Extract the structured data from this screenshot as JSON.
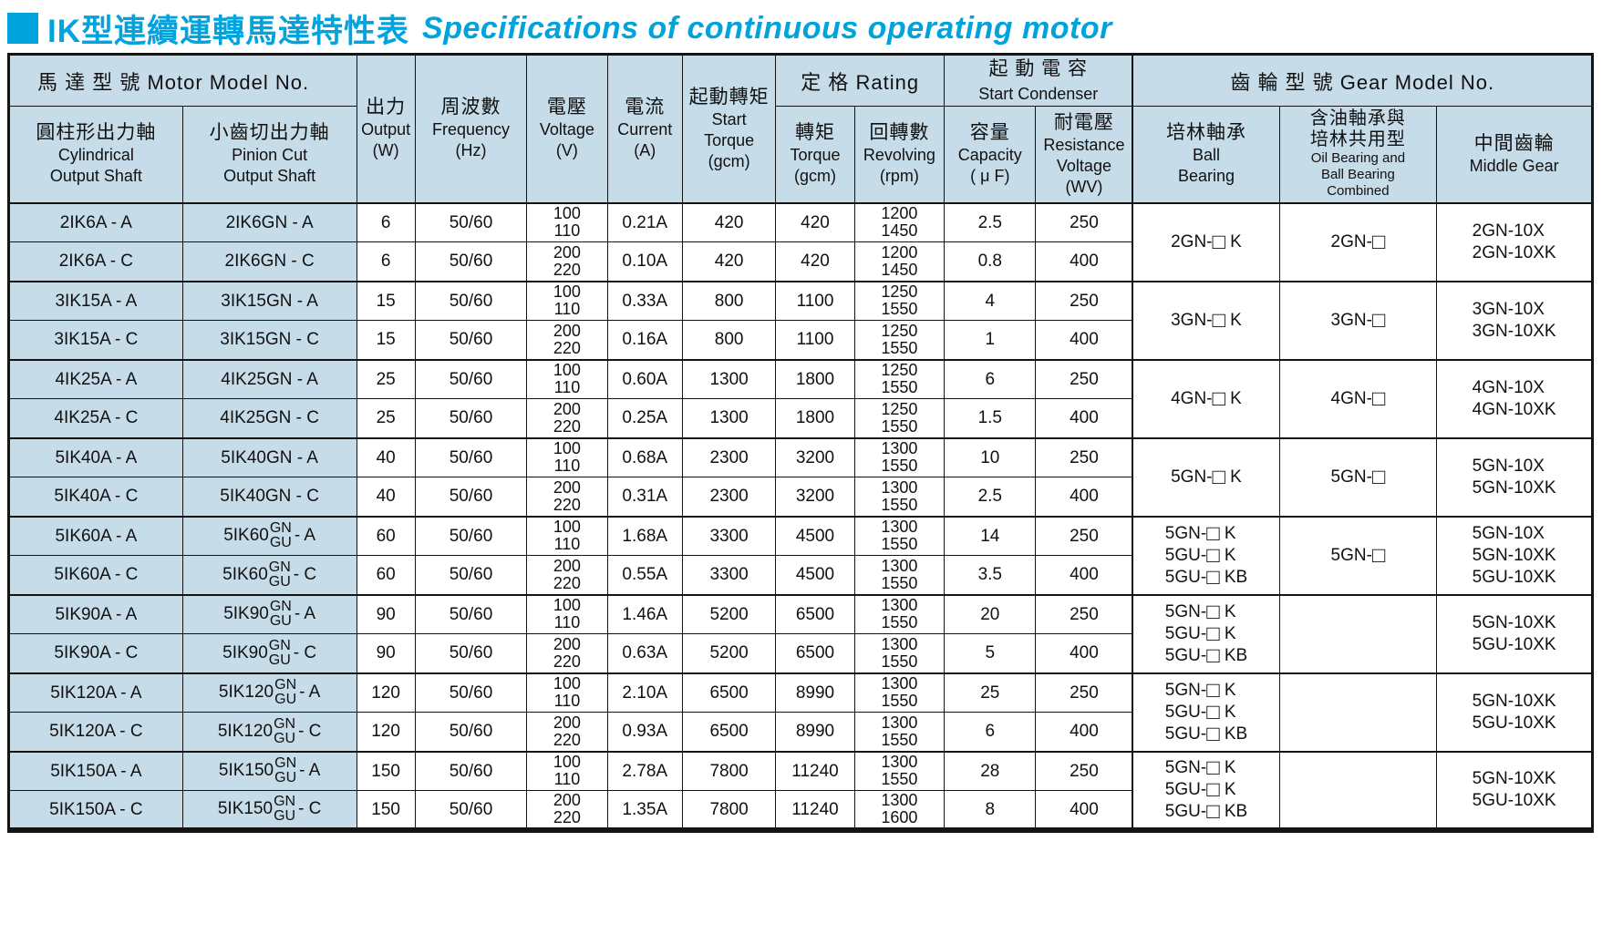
{
  "title": {
    "zh": "IK型連續運轉馬達特性表",
    "en": "Specifications of continuous operating motor"
  },
  "colors": {
    "accent": "#00a3dc",
    "header_bg": "#c6dce8",
    "border": "#141414"
  },
  "table": {
    "header": {
      "motor_model": "馬 達 型 號 Motor Model No.",
      "cylindrical": [
        "圓柱形出力軸",
        "Cylindrical",
        "Output Shaft"
      ],
      "pinion": [
        "小齒切出力軸",
        "Pinion Cut",
        "Output Shaft"
      ],
      "output": [
        "出力",
        "Output",
        "(W)"
      ],
      "frequency": [
        "周波數",
        "Frequency",
        "(Hz)"
      ],
      "voltage": [
        "電壓",
        "Voltage",
        "(V)"
      ],
      "current": [
        "電流",
        "Current",
        "(A)"
      ],
      "start_torque": [
        "起動轉矩",
        "Start",
        "Torque",
        "(gcm)"
      ],
      "rating": "定 格 Rating",
      "torque": [
        "轉矩",
        "Torque",
        "(gcm)"
      ],
      "revolving": [
        "回轉數",
        "Revolving",
        "(rpm)"
      ],
      "condenser": [
        "起 動 電 容",
        "Start Condenser"
      ],
      "capacity": [
        "容量",
        "Capacity",
        "( μ F)"
      ],
      "resistance": [
        "耐電壓",
        "Resistance",
        "Voltage",
        "(WV)"
      ],
      "gear_model": "齒 輪 型 號 Gear Model No.",
      "ball_bearing": [
        "培林軸承",
        "Ball",
        "Bearing"
      ],
      "oil_bearing": [
        "含油軸承與",
        "培林共用型",
        "Oil Bearing and",
        "Ball Bearing",
        "Combined"
      ],
      "middle_gear": [
        "中間齒輪",
        "Middle Gear"
      ]
    },
    "rows": [
      {
        "cylindrical": "2IK6A - A",
        "pinion": "2IK6GN - A",
        "output": "6",
        "frequency": "50/60",
        "voltage": [
          "100",
          "110"
        ],
        "current": "0.21A",
        "start_torque": "420",
        "torque": "420",
        "revolving": [
          "1200",
          "1450"
        ],
        "capacity": "2.5",
        "resistance": "250"
      },
      {
        "cylindrical": "2IK6A - C",
        "pinion": "2IK6GN - C",
        "output": "6",
        "frequency": "50/60",
        "voltage": [
          "200",
          "220"
        ],
        "current": "0.10A",
        "start_torque": "420",
        "torque": "420",
        "revolving": [
          "1200",
          "1450"
        ],
        "capacity": "0.8",
        "resistance": "400"
      },
      {
        "cylindrical": "3IK15A - A",
        "pinion": "3IK15GN - A",
        "output": "15",
        "frequency": "50/60",
        "voltage": [
          "100",
          "110"
        ],
        "current": "0.33A",
        "start_torque": "800",
        "torque": "1100",
        "revolving": [
          "1250",
          "1550"
        ],
        "capacity": "4",
        "resistance": "250"
      },
      {
        "cylindrical": "3IK15A - C",
        "pinion": "3IK15GN - C",
        "output": "15",
        "frequency": "50/60",
        "voltage": [
          "200",
          "220"
        ],
        "current": "0.16A",
        "start_torque": "800",
        "torque": "1100",
        "revolving": [
          "1250",
          "1550"
        ],
        "capacity": "1",
        "resistance": "400"
      },
      {
        "cylindrical": "4IK25A - A",
        "pinion": "4IK25GN - A",
        "output": "25",
        "frequency": "50/60",
        "voltage": [
          "100",
          "110"
        ],
        "current": "0.60A",
        "start_torque": "1300",
        "torque": "1800",
        "revolving": [
          "1250",
          "1550"
        ],
        "capacity": "6",
        "resistance": "250"
      },
      {
        "cylindrical": "4IK25A - C",
        "pinion": "4IK25GN - C",
        "output": "25",
        "frequency": "50/60",
        "voltage": [
          "200",
          "220"
        ],
        "current": "0.25A",
        "start_torque": "1300",
        "torque": "1800",
        "revolving": [
          "1250",
          "1550"
        ],
        "capacity": "1.5",
        "resistance": "400"
      },
      {
        "cylindrical": "5IK40A - A",
        "pinion": "5IK40GN - A",
        "output": "40",
        "frequency": "50/60",
        "voltage": [
          "100",
          "110"
        ],
        "current": "0.68A",
        "start_torque": "2300",
        "torque": "3200",
        "revolving": [
          "1300",
          "1550"
        ],
        "capacity": "10",
        "resistance": "250"
      },
      {
        "cylindrical": "5IK40A - C",
        "pinion": "5IK40GN - C",
        "output": "40",
        "frequency": "50/60",
        "voltage": [
          "200",
          "220"
        ],
        "current": "0.31A",
        "start_torque": "2300",
        "torque": "3200",
        "revolving": [
          "1300",
          "1550"
        ],
        "capacity": "2.5",
        "resistance": "400"
      },
      {
        "cylindrical": "5IK60A - A",
        "pinion": {
          "prefix": "5IK60",
          "stack": [
            "GN",
            "GU"
          ],
          "suffix": "- A"
        },
        "output": "60",
        "frequency": "50/60",
        "voltage": [
          "100",
          "110"
        ],
        "current": "1.68A",
        "start_torque": "3300",
        "torque": "4500",
        "revolving": [
          "1300",
          "1550"
        ],
        "capacity": "14",
        "resistance": "250"
      },
      {
        "cylindrical": "5IK60A - C",
        "pinion": {
          "prefix": "5IK60",
          "stack": [
            "GN",
            "GU"
          ],
          "suffix": "- C"
        },
        "output": "60",
        "frequency": "50/60",
        "voltage": [
          "200",
          "220"
        ],
        "current": "0.55A",
        "start_torque": "3300",
        "torque": "4500",
        "revolving": [
          "1300",
          "1550"
        ],
        "capacity": "3.5",
        "resistance": "400"
      },
      {
        "cylindrical": "5IK90A - A",
        "pinion": {
          "prefix": "5IK90",
          "stack": [
            "GN",
            "GU"
          ],
          "suffix": "- A"
        },
        "output": "90",
        "frequency": "50/60",
        "voltage": [
          "100",
          "110"
        ],
        "current": "1.46A",
        "start_torque": "5200",
        "torque": "6500",
        "revolving": [
          "1300",
          "1550"
        ],
        "capacity": "20",
        "resistance": "250"
      },
      {
        "cylindrical": "5IK90A - C",
        "pinion": {
          "prefix": "5IK90",
          "stack": [
            "GN",
            "GU"
          ],
          "suffix": "- C"
        },
        "output": "90",
        "frequency": "50/60",
        "voltage": [
          "200",
          "220"
        ],
        "current": "0.63A",
        "start_torque": "5200",
        "torque": "6500",
        "revolving": [
          "1300",
          "1550"
        ],
        "capacity": "5",
        "resistance": "400"
      },
      {
        "cylindrical": "5IK120A - A",
        "pinion": {
          "prefix": "5IK120",
          "stack": [
            "GN",
            "GU"
          ],
          "suffix": "- A"
        },
        "output": "120",
        "frequency": "50/60",
        "voltage": [
          "100",
          "110"
        ],
        "current": "2.10A",
        "start_torque": "6500",
        "torque": "8990",
        "revolving": [
          "1300",
          "1550"
        ],
        "capacity": "25",
        "resistance": "250"
      },
      {
        "cylindrical": "5IK120A - C",
        "pinion": {
          "prefix": "5IK120",
          "stack": [
            "GN",
            "GU"
          ],
          "suffix": "- C"
        },
        "output": "120",
        "frequency": "50/60",
        "voltage": [
          "200",
          "220"
        ],
        "current": "0.93A",
        "start_torque": "6500",
        "torque": "8990",
        "revolving": [
          "1300",
          "1550"
        ],
        "capacity": "6",
        "resistance": "400"
      },
      {
        "cylindrical": "5IK150A - A",
        "pinion": {
          "prefix": "5IK150",
          "stack": [
            "GN",
            "GU"
          ],
          "suffix": "- A"
        },
        "output": "150",
        "frequency": "50/60",
        "voltage": [
          "100",
          "110"
        ],
        "current": "2.78A",
        "start_torque": "7800",
        "torque": "11240",
        "revolving": [
          "1300",
          "1550"
        ],
        "capacity": "28",
        "resistance": "250"
      },
      {
        "cylindrical": "5IK150A - C",
        "pinion": {
          "prefix": "5IK150",
          "stack": [
            "GN",
            "GU"
          ],
          "suffix": "- C"
        },
        "output": "150",
        "frequency": "50/60",
        "voltage": [
          "200",
          "220"
        ],
        "current": "1.35A",
        "start_torque": "7800",
        "torque": "11240",
        "revolving": [
          "1300",
          "1600"
        ],
        "capacity": "8",
        "resistance": "400"
      }
    ],
    "gear_groups": [
      {
        "ball": [
          "2GN-□ K"
        ],
        "oil": [
          "2GN-□"
        ],
        "middle": [
          "2GN-10X",
          "2GN-10XK"
        ]
      },
      {
        "ball": [
          "3GN-□ K"
        ],
        "oil": [
          "3GN-□"
        ],
        "middle": [
          "3GN-10X",
          "3GN-10XK"
        ]
      },
      {
        "ball": [
          "4GN-□ K"
        ],
        "oil": [
          "4GN-□"
        ],
        "middle": [
          "4GN-10X",
          "4GN-10XK"
        ]
      },
      {
        "ball": [
          "5GN-□ K"
        ],
        "oil": [
          "5GN-□"
        ],
        "middle": [
          "5GN-10X",
          "5GN-10XK"
        ]
      },
      {
        "ball": [
          "5GN-□ K",
          "5GU-□ K",
          "5GU-□ KB"
        ],
        "oil": [
          "5GN-□"
        ],
        "middle": [
          "5GN-10X",
          "5GN-10XK",
          "5GU-10XK"
        ]
      },
      {
        "ball": [
          "5GN-□ K",
          "5GU-□ K",
          "5GU-□ KB"
        ],
        "oil": [],
        "middle": [
          "5GN-10XK",
          "5GU-10XK"
        ]
      },
      {
        "ball": [
          "5GN-□ K",
          "5GU-□ K",
          "5GU-□ KB"
        ],
        "oil": [],
        "middle": [
          "5GN-10XK",
          "5GU-10XK"
        ]
      },
      {
        "ball": [
          "5GN-□ K",
          "5GU-□ K",
          "5GU-□ KB"
        ],
        "oil": [],
        "middle": [
          "5GN-10XK",
          "5GU-10XK"
        ]
      }
    ]
  }
}
